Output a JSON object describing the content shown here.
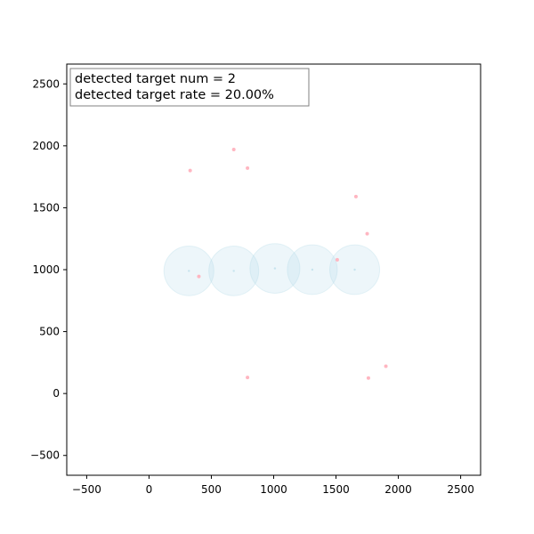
{
  "chart_data": {
    "type": "scatter",
    "title": "",
    "xlabel": "",
    "ylabel": "",
    "xlim": [
      -660,
      2660
    ],
    "ylim": [
      -660,
      2660
    ],
    "x_ticks": [
      -500,
      0,
      500,
      1000,
      1500,
      2000,
      2500
    ],
    "y_ticks": [
      -500,
      0,
      500,
      1000,
      1500,
      2000,
      2500
    ],
    "x_tick_labels": [
      "−500",
      "0",
      "500",
      "1000",
      "1500",
      "2000",
      "2500"
    ],
    "y_tick_labels": [
      "−500",
      "0",
      "500",
      "1000",
      "1500",
      "2000",
      "2500"
    ],
    "grid": false,
    "legend_position": "top-left",
    "annotation": {
      "line1": "detected target num = 2",
      "line2": "detected target rate = 20.00%"
    },
    "sensors": {
      "color": "#add8e6",
      "radius": 200,
      "points": [
        {
          "x": 320,
          "y": 990
        },
        {
          "x": 680,
          "y": 990
        },
        {
          "x": 1010,
          "y": 1010
        },
        {
          "x": 1310,
          "y": 1000
        },
        {
          "x": 1650,
          "y": 1000
        }
      ]
    },
    "targets": {
      "color": "#ffb6c1",
      "points": [
        {
          "x": 330,
          "y": 1800
        },
        {
          "x": 680,
          "y": 1970
        },
        {
          "x": 790,
          "y": 1820
        },
        {
          "x": 1660,
          "y": 1590
        },
        {
          "x": 1750,
          "y": 1290
        },
        {
          "x": 1510,
          "y": 1080
        },
        {
          "x": 400,
          "y": 945
        },
        {
          "x": 1900,
          "y": 220
        },
        {
          "x": 790,
          "y": 130
        },
        {
          "x": 1760,
          "y": 125
        }
      ]
    }
  }
}
